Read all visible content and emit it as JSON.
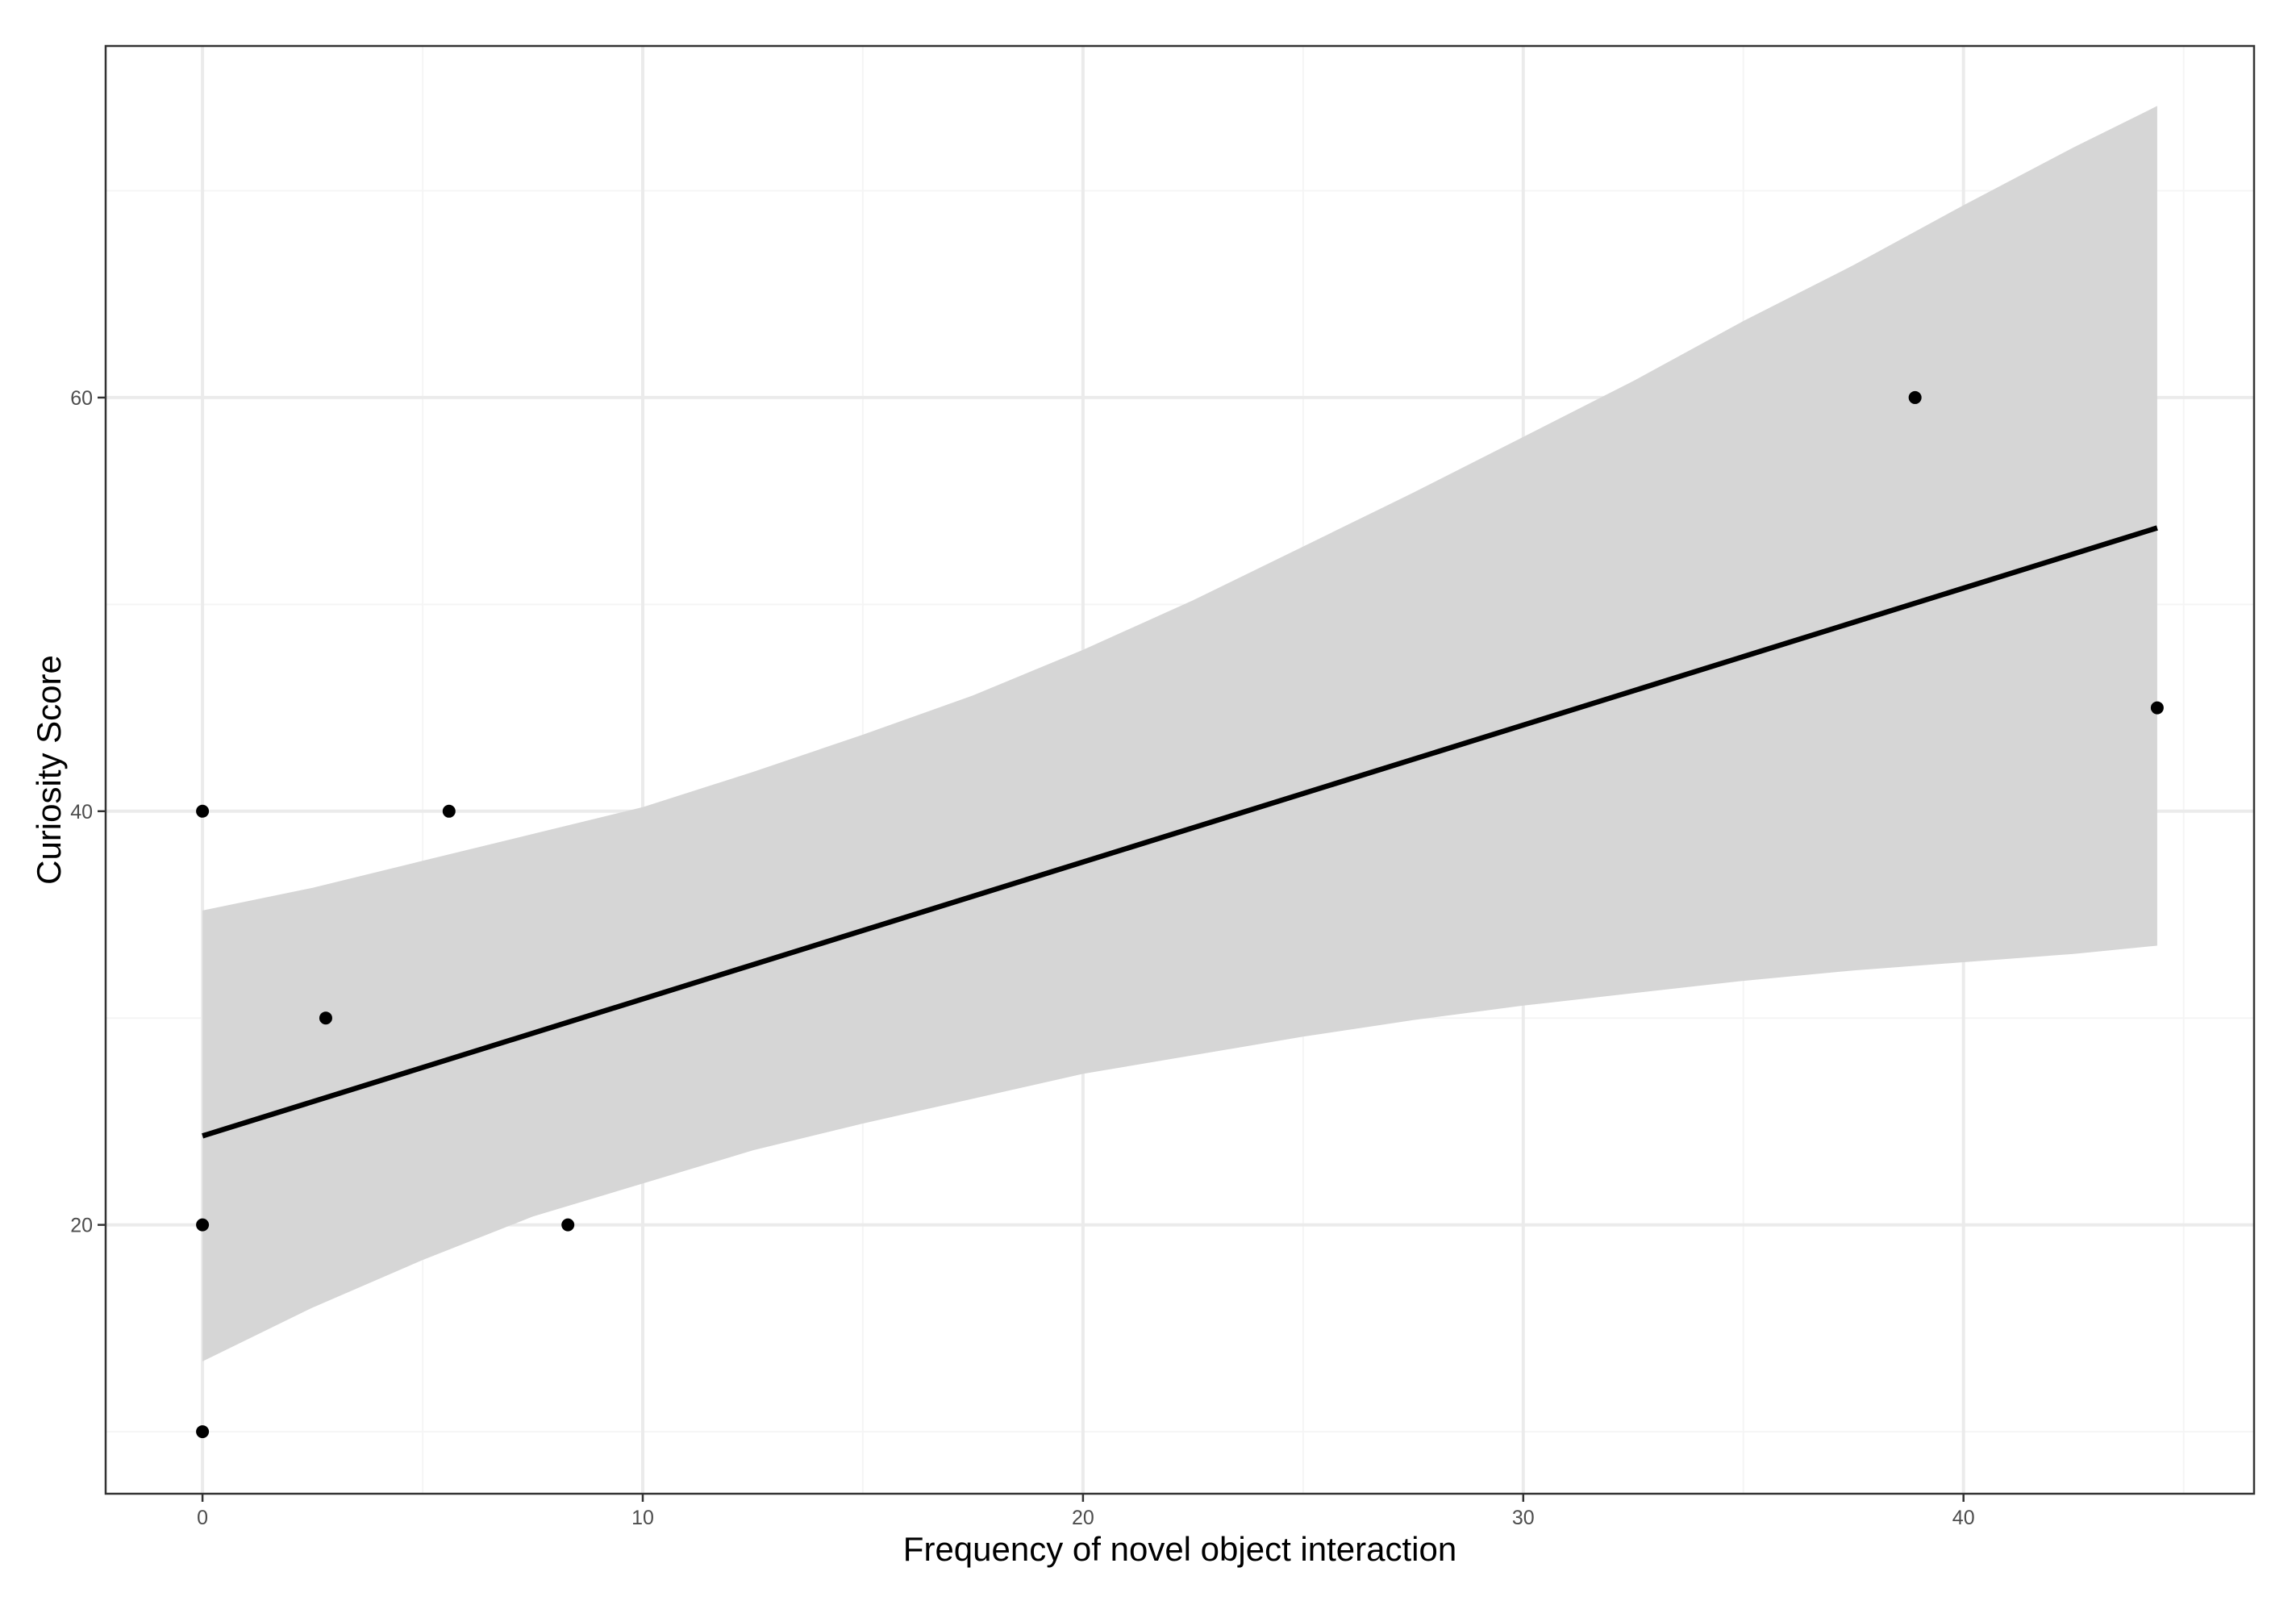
{
  "chart_data": {
    "type": "scatter",
    "title": "",
    "xlabel": "Frequency of novel object interaction",
    "ylabel": "Curiosity Score",
    "xlim": [
      -2.2,
      46.6
    ],
    "ylim": [
      7.0,
      77.0
    ],
    "x_ticks": [
      0,
      10,
      20,
      30,
      40
    ],
    "x_tick_labels": [
      "0",
      "10",
      "20",
      "30",
      "40"
    ],
    "y_ticks": [
      20,
      40,
      60
    ],
    "y_tick_labels": [
      "20",
      "40",
      "60"
    ],
    "x_minor_grid": [
      5,
      15,
      25,
      35,
      45
    ],
    "y_minor_grid": [
      10,
      30,
      50,
      70
    ],
    "grid": true,
    "legend": "none",
    "points": [
      {
        "x": 0,
        "y": 40
      },
      {
        "x": 0,
        "y": 20
      },
      {
        "x": 0,
        "y": 10
      },
      {
        "x": 2.8,
        "y": 30
      },
      {
        "x": 5.6,
        "y": 40
      },
      {
        "x": 8.3,
        "y": 20
      },
      {
        "x": 38.9,
        "y": 60
      },
      {
        "x": 44.4,
        "y": 45
      }
    ],
    "fit_line": {
      "method": "linear",
      "x": [
        0,
        44.4
      ],
      "y": [
        24.3,
        53.7
      ]
    },
    "confidence_band": {
      "x": [
        0,
        2.5,
        5,
        7.5,
        10,
        12.5,
        15,
        17.5,
        20,
        22.5,
        25,
        27.5,
        30,
        32.5,
        35,
        37.5,
        40,
        42.5,
        44.4
      ],
      "upper": [
        35.2,
        36.3,
        37.6,
        38.9,
        40.2,
        41.9,
        43.7,
        45.6,
        47.8,
        50.2,
        52.8,
        55.4,
        58.1,
        60.8,
        63.7,
        66.4,
        69.3,
        72.1,
        74.1
      ],
      "lower": [
        13.4,
        16.0,
        18.3,
        20.4,
        22.0,
        23.6,
        24.9,
        26.1,
        27.3,
        28.2,
        29.1,
        29.9,
        30.6,
        31.2,
        31.8,
        32.3,
        32.7,
        33.1,
        33.5
      ]
    },
    "colors": {
      "background": "#ffffff",
      "panel_border": "#333333",
      "grid_major": "#ebebeb",
      "grid_minor": "#f5f5f5",
      "band": "#d6d6d6",
      "line": "#000000",
      "points": "#000000",
      "tick_label": "#4d4d4d",
      "tick_mark": "#333333"
    }
  }
}
